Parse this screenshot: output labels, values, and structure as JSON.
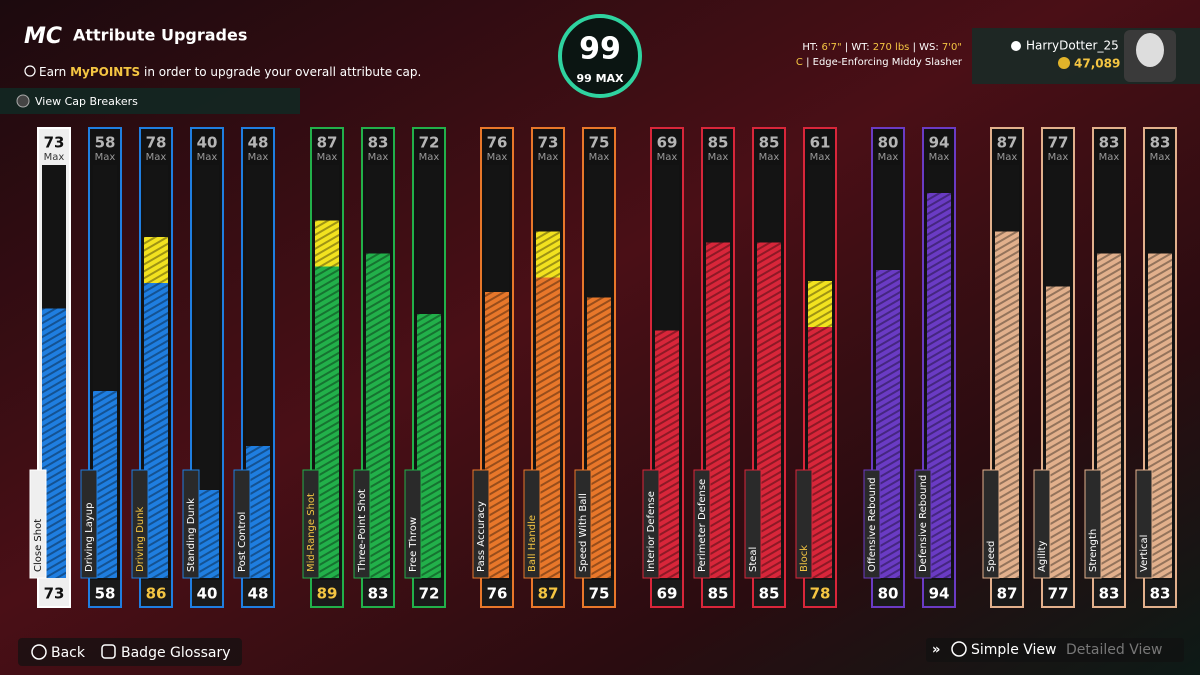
{
  "header": {
    "logo": "MC",
    "title": "Attribute Upgrades",
    "info_pre": "Earn ",
    "info_highlight": "MyPOINTS",
    "info_post": " in order to upgrade your overall attribute cap.",
    "cap_breakers": "View Cap Breakers"
  },
  "overall": {
    "value": 99,
    "max_label": "99 MAX"
  },
  "player": {
    "ht_label": "HT:",
    "ht": "6'7\"",
    "wt_label": "WT:",
    "wt": "270 lbs",
    "ws_label": "WS:",
    "ws": "7'0\"",
    "position": "C",
    "archetype": "Edge-Enforcing Middy Slasher",
    "username": "HarryDotter_25",
    "vc": "47,089"
  },
  "max_suffix": "Max",
  "groups": [
    {
      "color": "#1f7ee0",
      "attributes": [
        {
          "name": "Close Shot",
          "max": 73,
          "value": 73,
          "selected": true
        },
        {
          "name": "Driving Layup",
          "max": 58,
          "value": 58
        },
        {
          "name": "Driving Dunk",
          "max": 78,
          "value": 86,
          "highlighted": true
        },
        {
          "name": "Standing Dunk",
          "max": 40,
          "value": 40
        },
        {
          "name": "Post Control",
          "max": 48,
          "value": 48
        }
      ]
    },
    {
      "color": "#22b04a",
      "attributes": [
        {
          "name": "Mid-Range Shot",
          "max": 87,
          "value": 89,
          "highlighted": true
        },
        {
          "name": "Three-Point Shot",
          "max": 83,
          "value": 83
        },
        {
          "name": "Free Throw",
          "max": 72,
          "value": 72
        }
      ]
    },
    {
      "color": "#e8772a",
      "attributes": [
        {
          "name": "Pass Accuracy",
          "max": 76,
          "value": 76
        },
        {
          "name": "Ball Handle",
          "max": 73,
          "value": 87,
          "highlighted": true
        },
        {
          "name": "Speed With Ball",
          "max": 75,
          "value": 75
        }
      ]
    },
    {
      "color": "#d8263a",
      "attributes": [
        {
          "name": "Interior Defense",
          "max": 69,
          "value": 69
        },
        {
          "name": "Perimeter Defense",
          "max": 85,
          "value": 85
        },
        {
          "name": "Steal",
          "max": 85,
          "value": 85
        },
        {
          "name": "Block",
          "max": 61,
          "value": 78,
          "highlighted": true
        }
      ]
    },
    {
      "color": "#6a3bc4",
      "attributes": [
        {
          "name": "Offensive Rebound",
          "max": 80,
          "value": 80
        },
        {
          "name": "Defensive Rebound",
          "max": 94,
          "value": 94
        }
      ]
    },
    {
      "color": "#e2b08c",
      "attributes": [
        {
          "name": "Speed",
          "max": 87,
          "value": 87
        },
        {
          "name": "Agility",
          "max": 77,
          "value": 77
        },
        {
          "name": "Strength",
          "max": 83,
          "value": 83
        },
        {
          "name": "Vertical",
          "max": 83,
          "value": 83
        }
      ]
    }
  ],
  "footer": {
    "back": "Back",
    "badge_glossary": "Badge Glossary",
    "simple_view": "Simple View",
    "detailed_view": "Detailed View"
  }
}
